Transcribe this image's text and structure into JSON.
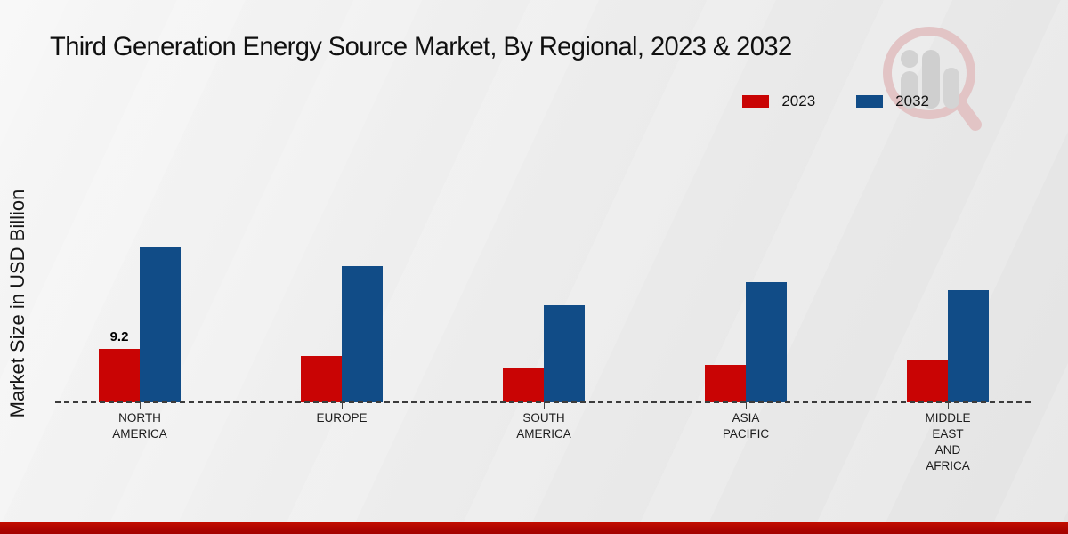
{
  "title": "Third Generation Energy Source Market, By Regional, 2023 & 2032",
  "y_axis_label": "Market Size in USD Billion",
  "legend": {
    "position": "top-right",
    "items": [
      {
        "label": "2023",
        "color": "#c90404"
      },
      {
        "label": "2032",
        "color": "#114c87"
      }
    ]
  },
  "watermark": "market-research-magnifier-logo",
  "footer": {
    "accent_color": "#ad0400"
  },
  "chart_data": {
    "type": "bar",
    "title": "Third Generation Energy Source Market, By Regional, 2023 & 2032",
    "categories": [
      "NORTH AMERICA",
      "EUROPE",
      "SOUTH AMERICA",
      "ASIA PACIFIC",
      "MIDDLE EAST AND AFRICA"
    ],
    "category_label_lines": [
      [
        "NORTH",
        "AMERICA"
      ],
      [
        "EUROPE"
      ],
      [
        "SOUTH",
        "AMERICA"
      ],
      [
        "ASIA",
        "PACIFIC"
      ],
      [
        "MIDDLE",
        "EAST",
        "AND",
        "AFRICA"
      ]
    ],
    "series": [
      {
        "name": "2023",
        "color": "#c90404",
        "values": [
          9.2,
          7.9,
          5.9,
          6.4,
          7.2
        ]
      },
      {
        "name": "2032",
        "color": "#114c87",
        "values": [
          26.7,
          23.4,
          16.7,
          20.7,
          19.3
        ]
      }
    ],
    "data_labels": [
      {
        "series": "2023",
        "category": "NORTH AMERICA",
        "text": "9.2"
      }
    ],
    "xlabel": "",
    "ylabel": "Market Size in USD Billion",
    "ylim": [
      0,
      30
    ],
    "grid": false,
    "baseline_style": "dashed",
    "legend_position": "top-right"
  }
}
